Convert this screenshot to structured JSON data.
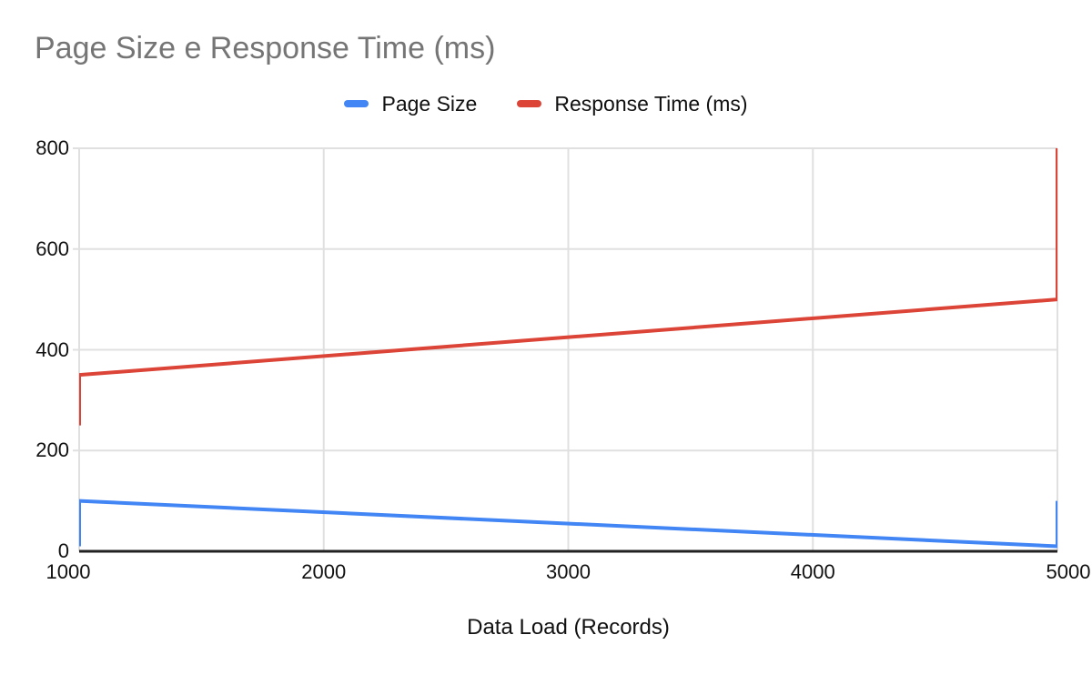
{
  "title": "Page Size e Response Time (ms)",
  "x_axis_title": "Data Load (Records)",
  "colors": {
    "title": "#757575",
    "text": "#111111",
    "gridline": "#e0e0e0",
    "baseline": "#212121",
    "background": "#ffffff",
    "series_blue": "#4285f4",
    "series_red": "#db4437"
  },
  "chart_data": {
    "type": "line",
    "title": "Page Size e Response Time (ms)",
    "xlabel": "Data Load (Records)",
    "ylabel": "",
    "xlim": [
      1000,
      5000
    ],
    "ylim": [
      0,
      800
    ],
    "x_ticks": [
      1000,
      2000,
      3000,
      4000,
      5000
    ],
    "y_ticks": [
      0,
      200,
      400,
      600,
      800
    ],
    "grid": true,
    "legend_position": "top",
    "series": [
      {
        "name": "Page Size",
        "color": "#4285f4",
        "points": [
          [
            1000,
            10
          ],
          [
            1000,
            100
          ],
          [
            5000,
            10
          ],
          [
            5000,
            100
          ]
        ]
      },
      {
        "name": "Response Time (ms)",
        "color": "#db4437",
        "points": [
          [
            1000,
            250
          ],
          [
            1000,
            350
          ],
          [
            5000,
            500
          ],
          [
            5000,
            800
          ]
        ]
      }
    ]
  }
}
